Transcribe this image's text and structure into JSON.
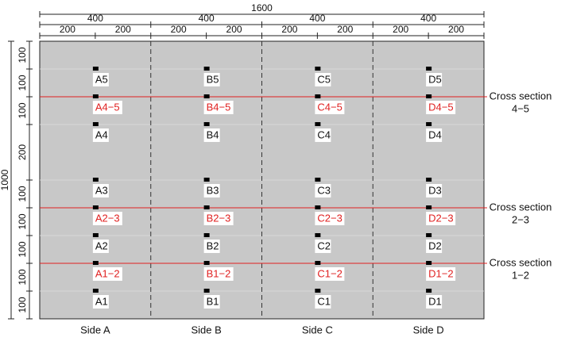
{
  "dimensions": {
    "top": {
      "total": "1600",
      "halves": [
        "400",
        "400",
        "400",
        "400"
      ],
      "quarters": [
        "200",
        "200",
        "200",
        "200",
        "200",
        "200",
        "200",
        "200"
      ]
    },
    "left": {
      "total": "1000",
      "segments": [
        "100",
        "100",
        "100",
        "200",
        "100",
        "100",
        "100",
        "100",
        "100"
      ]
    }
  },
  "columns": [
    {
      "side": "Side A",
      "sensors": [
        "A5",
        "A4−5",
        "A4",
        "A3",
        "A2−3",
        "A2",
        "A1−2",
        "A1"
      ]
    },
    {
      "side": "Side B",
      "sensors": [
        "B5",
        "B4−5",
        "B4",
        "B3",
        "B2−3",
        "B2",
        "B1−2",
        "B1"
      ]
    },
    {
      "side": "Side C",
      "sensors": [
        "C5",
        "C4−5",
        "C4",
        "C3",
        "C2−3",
        "C2",
        "C1−2",
        "C1"
      ]
    },
    {
      "side": "Side D",
      "sensors": [
        "D5",
        "D4−5",
        "D4",
        "D3",
        "D2−3",
        "D2",
        "D1−2",
        "D1"
      ]
    }
  ],
  "cross_sections": [
    {
      "lines": [
        "Cross section",
        "4−5"
      ]
    },
    {
      "lines": [
        "Cross section",
        "2−3"
      ]
    },
    {
      "lines": [
        "Cross section",
        "1−2"
      ]
    }
  ]
}
